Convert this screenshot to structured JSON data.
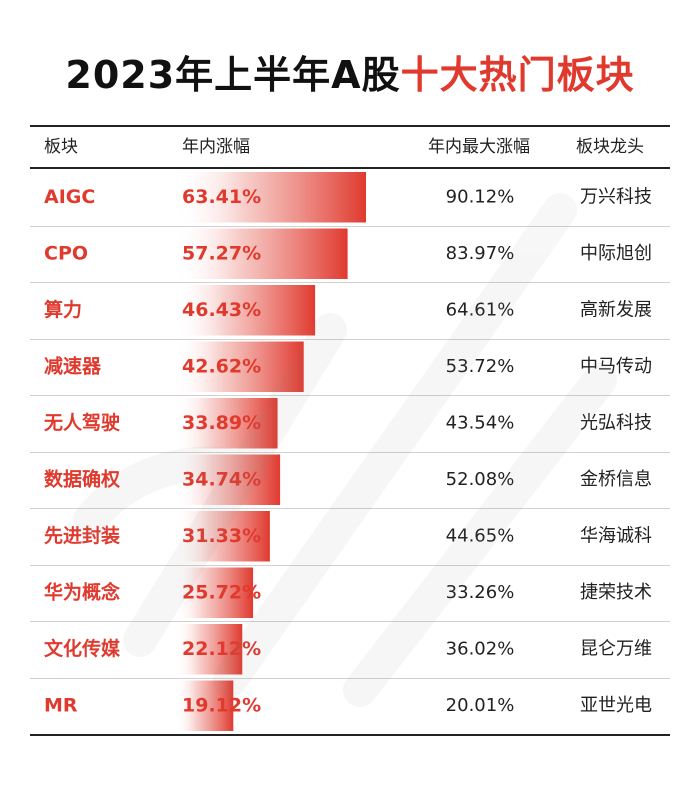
{
  "title": {
    "prefix": "2023年上半年A股",
    "highlight": "十大热门板块"
  },
  "headers": {
    "sector": "板块",
    "gain": "年内涨幅",
    "max_gain": "年内最大涨幅",
    "leader": "板块龙头"
  },
  "colors": {
    "accent": "#e03a2f",
    "text": "#222222"
  },
  "chart_data": {
    "type": "table",
    "title": "2023年上半年A股十大热门板块",
    "columns": [
      "板块",
      "年内涨幅",
      "年内最大涨幅",
      "板块龙头"
    ],
    "value_max": 63.41,
    "rows": [
      {
        "sector": "AIGC",
        "gain": 63.41,
        "gain_label": "63.41%",
        "max_gain": 90.12,
        "max_gain_label": "90.12%",
        "leader": "万兴科技"
      },
      {
        "sector": "CPO",
        "gain": 57.27,
        "gain_label": "57.27%",
        "max_gain": 83.97,
        "max_gain_label": "83.97%",
        "leader": "中际旭创"
      },
      {
        "sector": "算力",
        "gain": 46.43,
        "gain_label": "46.43%",
        "max_gain": 64.61,
        "max_gain_label": "64.61%",
        "leader": "高新发展"
      },
      {
        "sector": "减速器",
        "gain": 42.62,
        "gain_label": "42.62%",
        "max_gain": 53.72,
        "max_gain_label": "53.72%",
        "leader": "中马传动"
      },
      {
        "sector": "无人驾驶",
        "gain": 33.89,
        "gain_label": "33.89%",
        "max_gain": 43.54,
        "max_gain_label": "43.54%",
        "leader": "光弘科技"
      },
      {
        "sector": "数据确权",
        "gain": 34.74,
        "gain_label": "34.74%",
        "max_gain": 52.08,
        "max_gain_label": "52.08%",
        "leader": "金桥信息"
      },
      {
        "sector": "先进封装",
        "gain": 31.33,
        "gain_label": "31.33%",
        "max_gain": 44.65,
        "max_gain_label": "44.65%",
        "leader": "华海诚科"
      },
      {
        "sector": "华为概念",
        "gain": 25.72,
        "gain_label": "25.72%",
        "max_gain": 33.26,
        "max_gain_label": "33.26%",
        "leader": "捷荣技术"
      },
      {
        "sector": "文化传媒",
        "gain": 22.12,
        "gain_label": "22.12%",
        "max_gain": 36.02,
        "max_gain_label": "36.02%",
        "leader": "昆仑万维"
      },
      {
        "sector": "MR",
        "gain": 19.12,
        "gain_label": "19.12%",
        "max_gain": 20.01,
        "max_gain_label": "20.01%",
        "leader": "亚世光电"
      }
    ]
  }
}
